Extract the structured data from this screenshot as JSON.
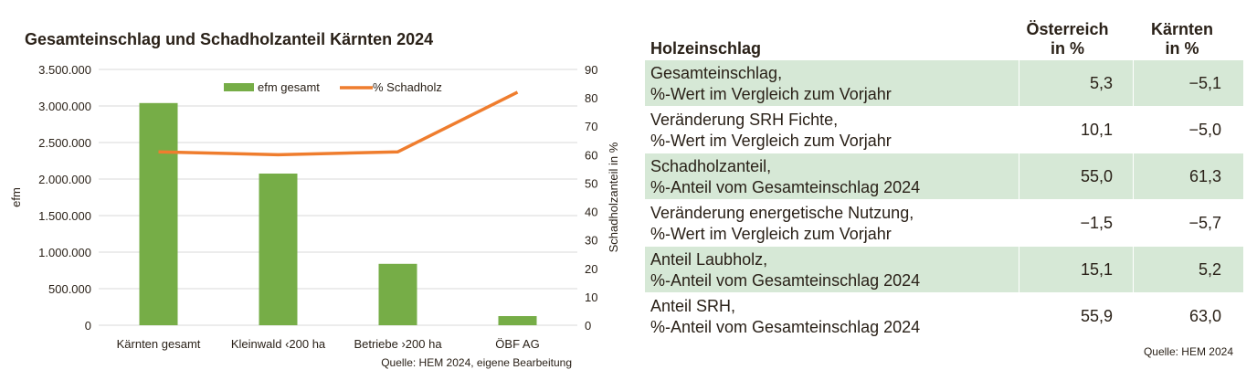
{
  "chart_data": {
    "type": "bar+line",
    "title": "Gesamteinschlag und Schadholzanteil Kärnten 2024",
    "categories": [
      "Kärnten gesamt",
      "Kleinwald ‹200 ha",
      "Betriebe ›200 ha",
      "ÖBF AG"
    ],
    "series": [
      {
        "name": "efm gesamt",
        "type": "bar",
        "axis": "left",
        "color": "#76ad47",
        "values": [
          3040000,
          2075000,
          840000,
          125000
        ]
      },
      {
        "name": "% Schadholz",
        "type": "line",
        "axis": "right",
        "color": "#ef7d2e",
        "values": [
          61,
          60,
          61,
          82
        ]
      }
    ],
    "ylabel": "efm",
    "ylim": [
      0,
      3500000
    ],
    "yticks": [
      "0",
      "500.000",
      "1.000.000",
      "1.500.000",
      "2.000.000",
      "2.500.000",
      "3.000.000",
      "3.500.000"
    ],
    "y2label": "Schadholzanteil in %",
    "y2lim": [
      0,
      90
    ],
    "y2ticks": [
      "0",
      "10",
      "20",
      "30",
      "40",
      "50",
      "60",
      "70",
      "80",
      "90"
    ],
    "grid": true,
    "legend": "top",
    "source": "Quelle: HEM 2024, eigene Bearbeitung"
  },
  "table": {
    "headers": [
      "Holzeinschlag",
      "Österreich\nin %",
      "Kärnten\nin %"
    ],
    "header_lines": {
      "c1a": "Österreich",
      "c1b": "in %",
      "c2a": "Kärnten",
      "c2b": "in %"
    },
    "rows": [
      {
        "l1": "Gesamteinschlag,",
        "l2": "%-Wert im Vergleich zum Vorjahr",
        "at": "5,3",
        "kt": "−5,1"
      },
      {
        "l1": "Veränderung SRH Fichte,",
        "l2": "%-Wert im Vergleich zum Vorjahr",
        "at": "10,1",
        "kt": "−5,0"
      },
      {
        "l1": "Schadholzanteil,",
        "l2": "%-Anteil vom Gesamteinschlag 2024",
        "at": "55,0",
        "kt": "61,3"
      },
      {
        "l1": "Veränderung energetische Nutzung,",
        "l2": "%-Wert im Vergleich zum Vorjahr",
        "at": "−1,5",
        "kt": "−5,7"
      },
      {
        "l1": "Anteil Laubholz,",
        "l2": "%-Anteil vom Gesamteinschlag 2024",
        "at": "15,1",
        "kt": "5,2"
      },
      {
        "l1": "Anteil SRH,",
        "l2": "%-Anteil vom Gesamteinschlag 2024",
        "at": "55,9",
        "kt": "63,0"
      }
    ],
    "row_fill": "#d6e8d6",
    "source": "Quelle: HEM 2024"
  }
}
